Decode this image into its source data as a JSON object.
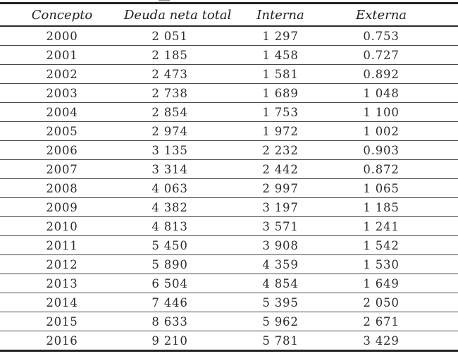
{
  "table": {
    "columns": [
      {
        "key": "concepto",
        "label": "Concepto"
      },
      {
        "key": "deuda_neta_total",
        "label": "Deuda neta total"
      },
      {
        "key": "interna",
        "label": "Interna"
      },
      {
        "key": "externa",
        "label": "Externa"
      }
    ],
    "rows": [
      [
        "2000",
        "2 051",
        "1 297",
        "0.753"
      ],
      [
        "2001",
        "2 185",
        "1 458",
        "0.727"
      ],
      [
        "2002",
        "2 473",
        "1 581",
        "0.892"
      ],
      [
        "2003",
        "2 738",
        "1 689",
        "1 048"
      ],
      [
        "2004",
        "2 854",
        "1 753",
        "1 100"
      ],
      [
        "2005",
        "2 974",
        "1 972",
        "1 002"
      ],
      [
        "2006",
        "3 135",
        "2 232",
        "0.903"
      ],
      [
        "2007",
        "3 314",
        "2 442",
        "0.872"
      ],
      [
        "2008",
        "4 063",
        "2 997",
        "1 065"
      ],
      [
        "2009",
        "4 382",
        "3 197",
        "1 185"
      ],
      [
        "2010",
        "4 813",
        "3 571",
        "1 241"
      ],
      [
        "2011",
        "5 450",
        "3 908",
        "1 542"
      ],
      [
        "2012",
        "5 890",
        "4 359",
        "1 530"
      ],
      [
        "2013",
        "6 504",
        "4 854",
        "1 649"
      ],
      [
        "2014",
        "7 446",
        "5 395",
        "2 050"
      ],
      [
        "2015",
        "8 633",
        "5 962",
        "2 671"
      ],
      [
        "2016",
        "9 210",
        "5 781",
        "3 429"
      ]
    ]
  },
  "colors": {
    "background": "#ffffff",
    "text": "#2b2b2b",
    "rule_heavy": "#232323",
    "rule_light": "#4a4a4a"
  }
}
